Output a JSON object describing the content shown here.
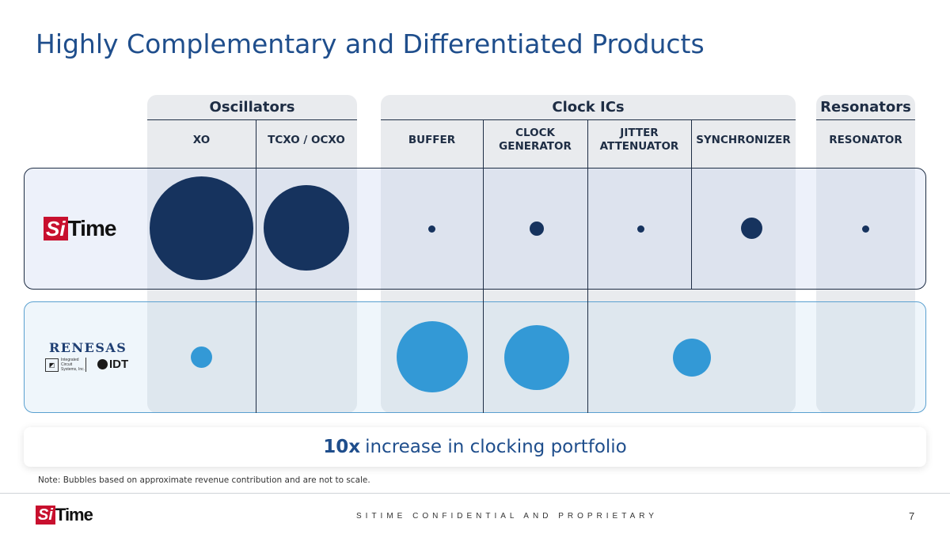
{
  "title": "Highly Complementary and Differentiated Products",
  "groups": {
    "oscillators": "Oscillators",
    "clock_ics": "Clock ICs",
    "resonators": "Resonators"
  },
  "columns": {
    "xo": "XO",
    "tcxo": "TCXO / OCXO",
    "buffer": "BUFFER",
    "clock_gen": "CLOCK GENERATOR",
    "jitter": "JITTER ATTENUATOR",
    "sync": "SYNCHRONIZER",
    "resonator": "RESONATOR"
  },
  "companies": {
    "sitime": {
      "si": "Si",
      "time": "Time"
    },
    "renesas": {
      "name": "RENESAS",
      "ics": "Integrated Circuit Systems, Inc.",
      "idt": "IDT"
    }
  },
  "colors": {
    "sitime_bubble": "#16335e",
    "renesas_bubble": "#3399d6",
    "title": "#1f4e8c"
  },
  "callout": {
    "highlight": "10x",
    "text": "increase in clocking portfolio"
  },
  "note": "Note: Bubbles based on approximate revenue contribution and are not to scale.",
  "footer": {
    "confidential": "SITIME CONFIDENTIAL AND PROPRIETARY",
    "page": "7",
    "si": "Si",
    "time": "Time"
  }
}
